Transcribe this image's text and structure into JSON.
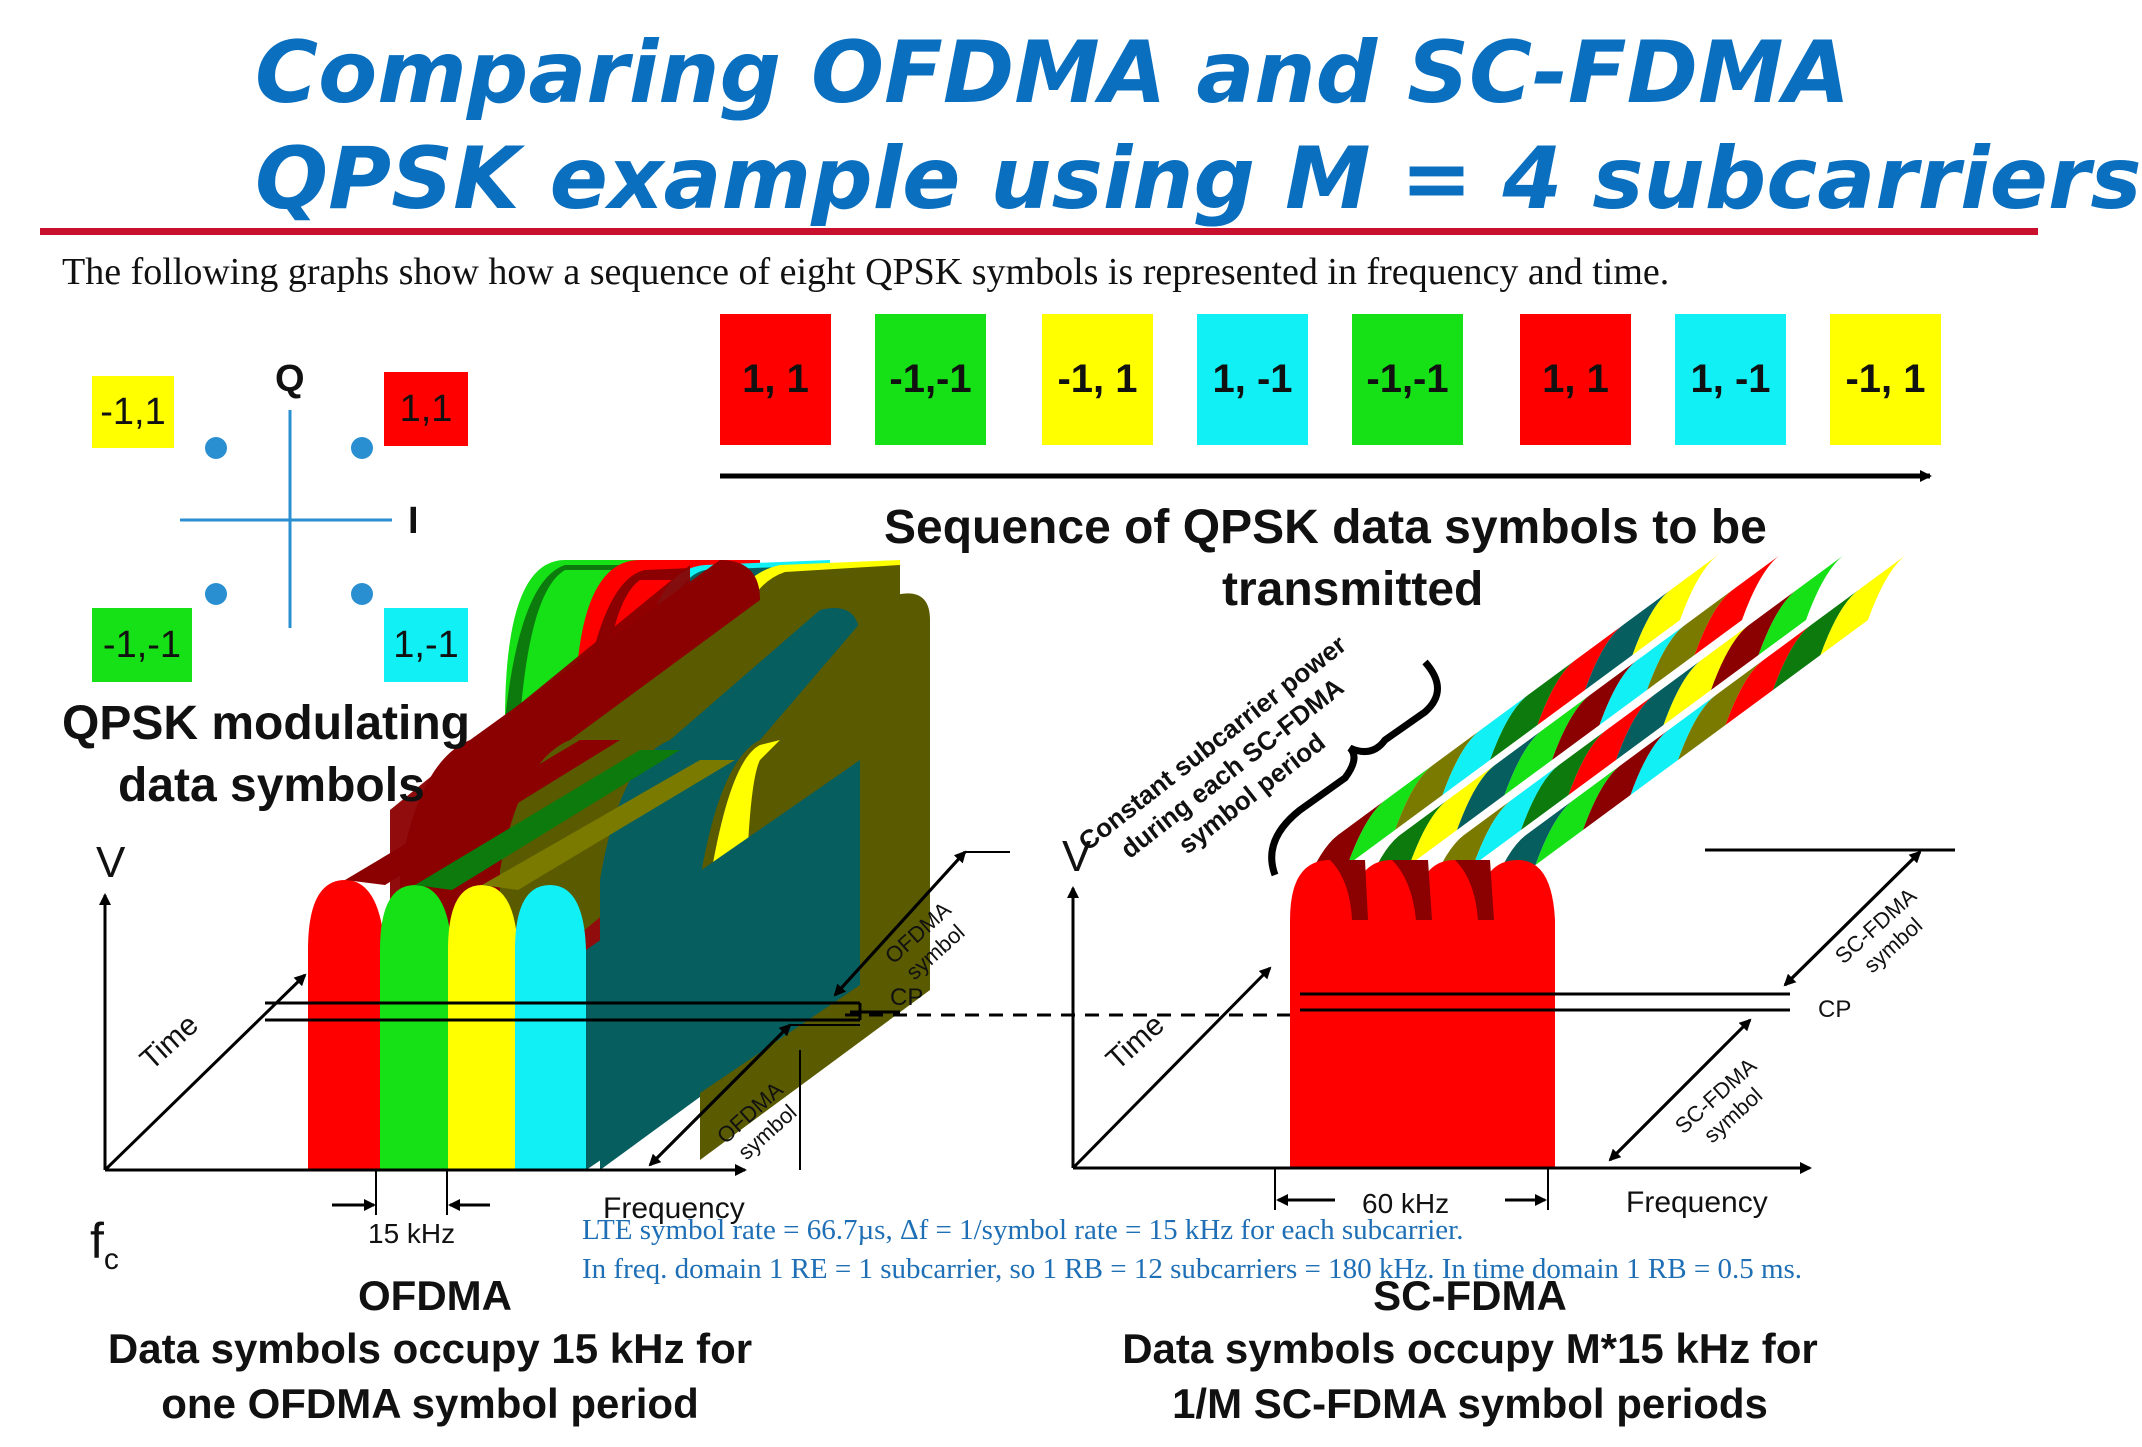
{
  "title": {
    "line1": "Comparing OFDMA and SC-FDMA",
    "line2": "QPSK example using M = 4 subcarriers"
  },
  "intro": "The following graphs show how a sequence of eight QPSK symbols is represented in frequency and time.",
  "colors": {
    "red": "#ff0000",
    "green": "#16e016",
    "yellow": "#ffff00",
    "cyan": "#11f0f5",
    "title_blue": "#0b6fc0",
    "rule_red": "#c8102e",
    "constellation_blue": "#2a8fd0",
    "dark_red": "#8b0000",
    "dark_green": "#0c7a0c",
    "dark_olive": "#7a7a00",
    "dark_teal": "#075e5e",
    "olive": "#5a5a00"
  },
  "constellation": {
    "axis_q": "Q",
    "axis_i": "I",
    "points": [
      {
        "label": "-1,1",
        "color": "yellow"
      },
      {
        "label": "1,1",
        "color": "red"
      },
      {
        "label": "-1,-1",
        "color": "green"
      },
      {
        "label": "1,-1",
        "color": "cyan"
      }
    ],
    "caption_line1": "QPSK modulating",
    "caption_line2": "data symbols"
  },
  "sequence": {
    "symbols": [
      {
        "label": "1, 1",
        "color": "red"
      },
      {
        "label": "-1,-1",
        "color": "green"
      },
      {
        "label": "-1, 1",
        "color": "yellow"
      },
      {
        "label": "1, -1",
        "color": "cyan"
      },
      {
        "label": "-1,-1",
        "color": "green"
      },
      {
        "label": "1, 1",
        "color": "red"
      },
      {
        "label": "1, -1",
        "color": "cyan"
      },
      {
        "label": "-1, 1",
        "color": "yellow"
      }
    ],
    "caption_line1": "Sequence of QPSK data symbols to be",
    "caption_line2": "transmitted"
  },
  "ofdma_diagram": {
    "axis_v": "V",
    "axis_time": "Time",
    "axis_frequency": "Frequency",
    "fc_base": "f",
    "fc_sub": "c",
    "bandwidth": "15 kHz",
    "cp": "CP",
    "symbol_label_line1": "OFDMA",
    "symbol_label_line2": "symbol",
    "caption_title": "OFDMA",
    "caption_line1": "Data symbols occupy 15 kHz for",
    "caption_line2": "one OFDMA symbol period"
  },
  "scfdma_diagram": {
    "axis_v": "V",
    "axis_time": "Time",
    "axis_frequency": "Frequency",
    "bandwidth": "60 kHz",
    "cp": "CP",
    "symbol_label_line1": "SC-FDMA",
    "symbol_label_line2": "symbol",
    "annotation_line1": "Constant subcarrier power",
    "annotation_line2": "during each SC-FDMA",
    "annotation_line3": "symbol period",
    "caption_title": "SC-FDMA",
    "caption_line1": "Data symbols occupy M*15 kHz for",
    "caption_line2": "1/M SC-FDMA symbol periods"
  },
  "notes": {
    "line1": "LTE symbol rate  = 66.7µs, Δf = 1/symbol rate = 15 kHz for each subcarrier.",
    "line2": "In freq. domain 1 RE = 1 subcarrier, so 1 RB = 12 subcarriers = 180 kHz. In time domain 1 RB = 0.5 ms."
  }
}
